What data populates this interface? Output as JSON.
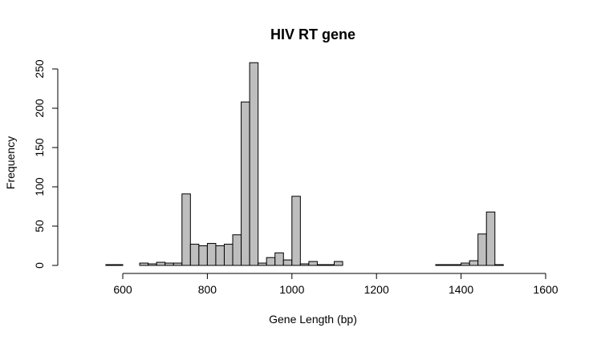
{
  "chart_data": {
    "type": "bar",
    "title": "HIV RT gene",
    "xlabel": "Gene Length (bp)",
    "ylabel": "Frequency",
    "x_ticks": [
      600,
      800,
      1000,
      1200,
      1400,
      1600
    ],
    "y_ticks": [
      0,
      50,
      100,
      150,
      200,
      250
    ],
    "xlim": [
      500,
      1600
    ],
    "ylim": [
      0,
      260
    ],
    "grid": false,
    "bins": [
      {
        "start": 560,
        "end": 580,
        "value": 1
      },
      {
        "start": 580,
        "end": 600,
        "value": 1
      },
      {
        "start": 640,
        "end": 660,
        "value": 3
      },
      {
        "start": 660,
        "end": 680,
        "value": 2
      },
      {
        "start": 680,
        "end": 700,
        "value": 4
      },
      {
        "start": 700,
        "end": 720,
        "value": 3
      },
      {
        "start": 720,
        "end": 740,
        "value": 3
      },
      {
        "start": 740,
        "end": 760,
        "value": 91
      },
      {
        "start": 760,
        "end": 780,
        "value": 27
      },
      {
        "start": 780,
        "end": 800,
        "value": 25
      },
      {
        "start": 800,
        "end": 820,
        "value": 28
      },
      {
        "start": 820,
        "end": 840,
        "value": 25
      },
      {
        "start": 840,
        "end": 860,
        "value": 27
      },
      {
        "start": 860,
        "end": 880,
        "value": 39
      },
      {
        "start": 880,
        "end": 900,
        "value": 208
      },
      {
        "start": 900,
        "end": 920,
        "value": 258
      },
      {
        "start": 920,
        "end": 940,
        "value": 3
      },
      {
        "start": 940,
        "end": 960,
        "value": 10
      },
      {
        "start": 960,
        "end": 980,
        "value": 16
      },
      {
        "start": 980,
        "end": 1000,
        "value": 7
      },
      {
        "start": 1000,
        "end": 1020,
        "value": 88
      },
      {
        "start": 1020,
        "end": 1040,
        "value": 2
      },
      {
        "start": 1040,
        "end": 1060,
        "value": 5
      },
      {
        "start": 1060,
        "end": 1080,
        "value": 1
      },
      {
        "start": 1080,
        "end": 1100,
        "value": 1
      },
      {
        "start": 1100,
        "end": 1120,
        "value": 5
      },
      {
        "start": 1340,
        "end": 1360,
        "value": 1
      },
      {
        "start": 1360,
        "end": 1380,
        "value": 1
      },
      {
        "start": 1380,
        "end": 1400,
        "value": 1
      },
      {
        "start": 1400,
        "end": 1420,
        "value": 3
      },
      {
        "start": 1420,
        "end": 1440,
        "value": 6
      },
      {
        "start": 1440,
        "end": 1460,
        "value": 40
      },
      {
        "start": 1460,
        "end": 1480,
        "value": 68
      },
      {
        "start": 1480,
        "end": 1500,
        "value": 1
      }
    ]
  }
}
